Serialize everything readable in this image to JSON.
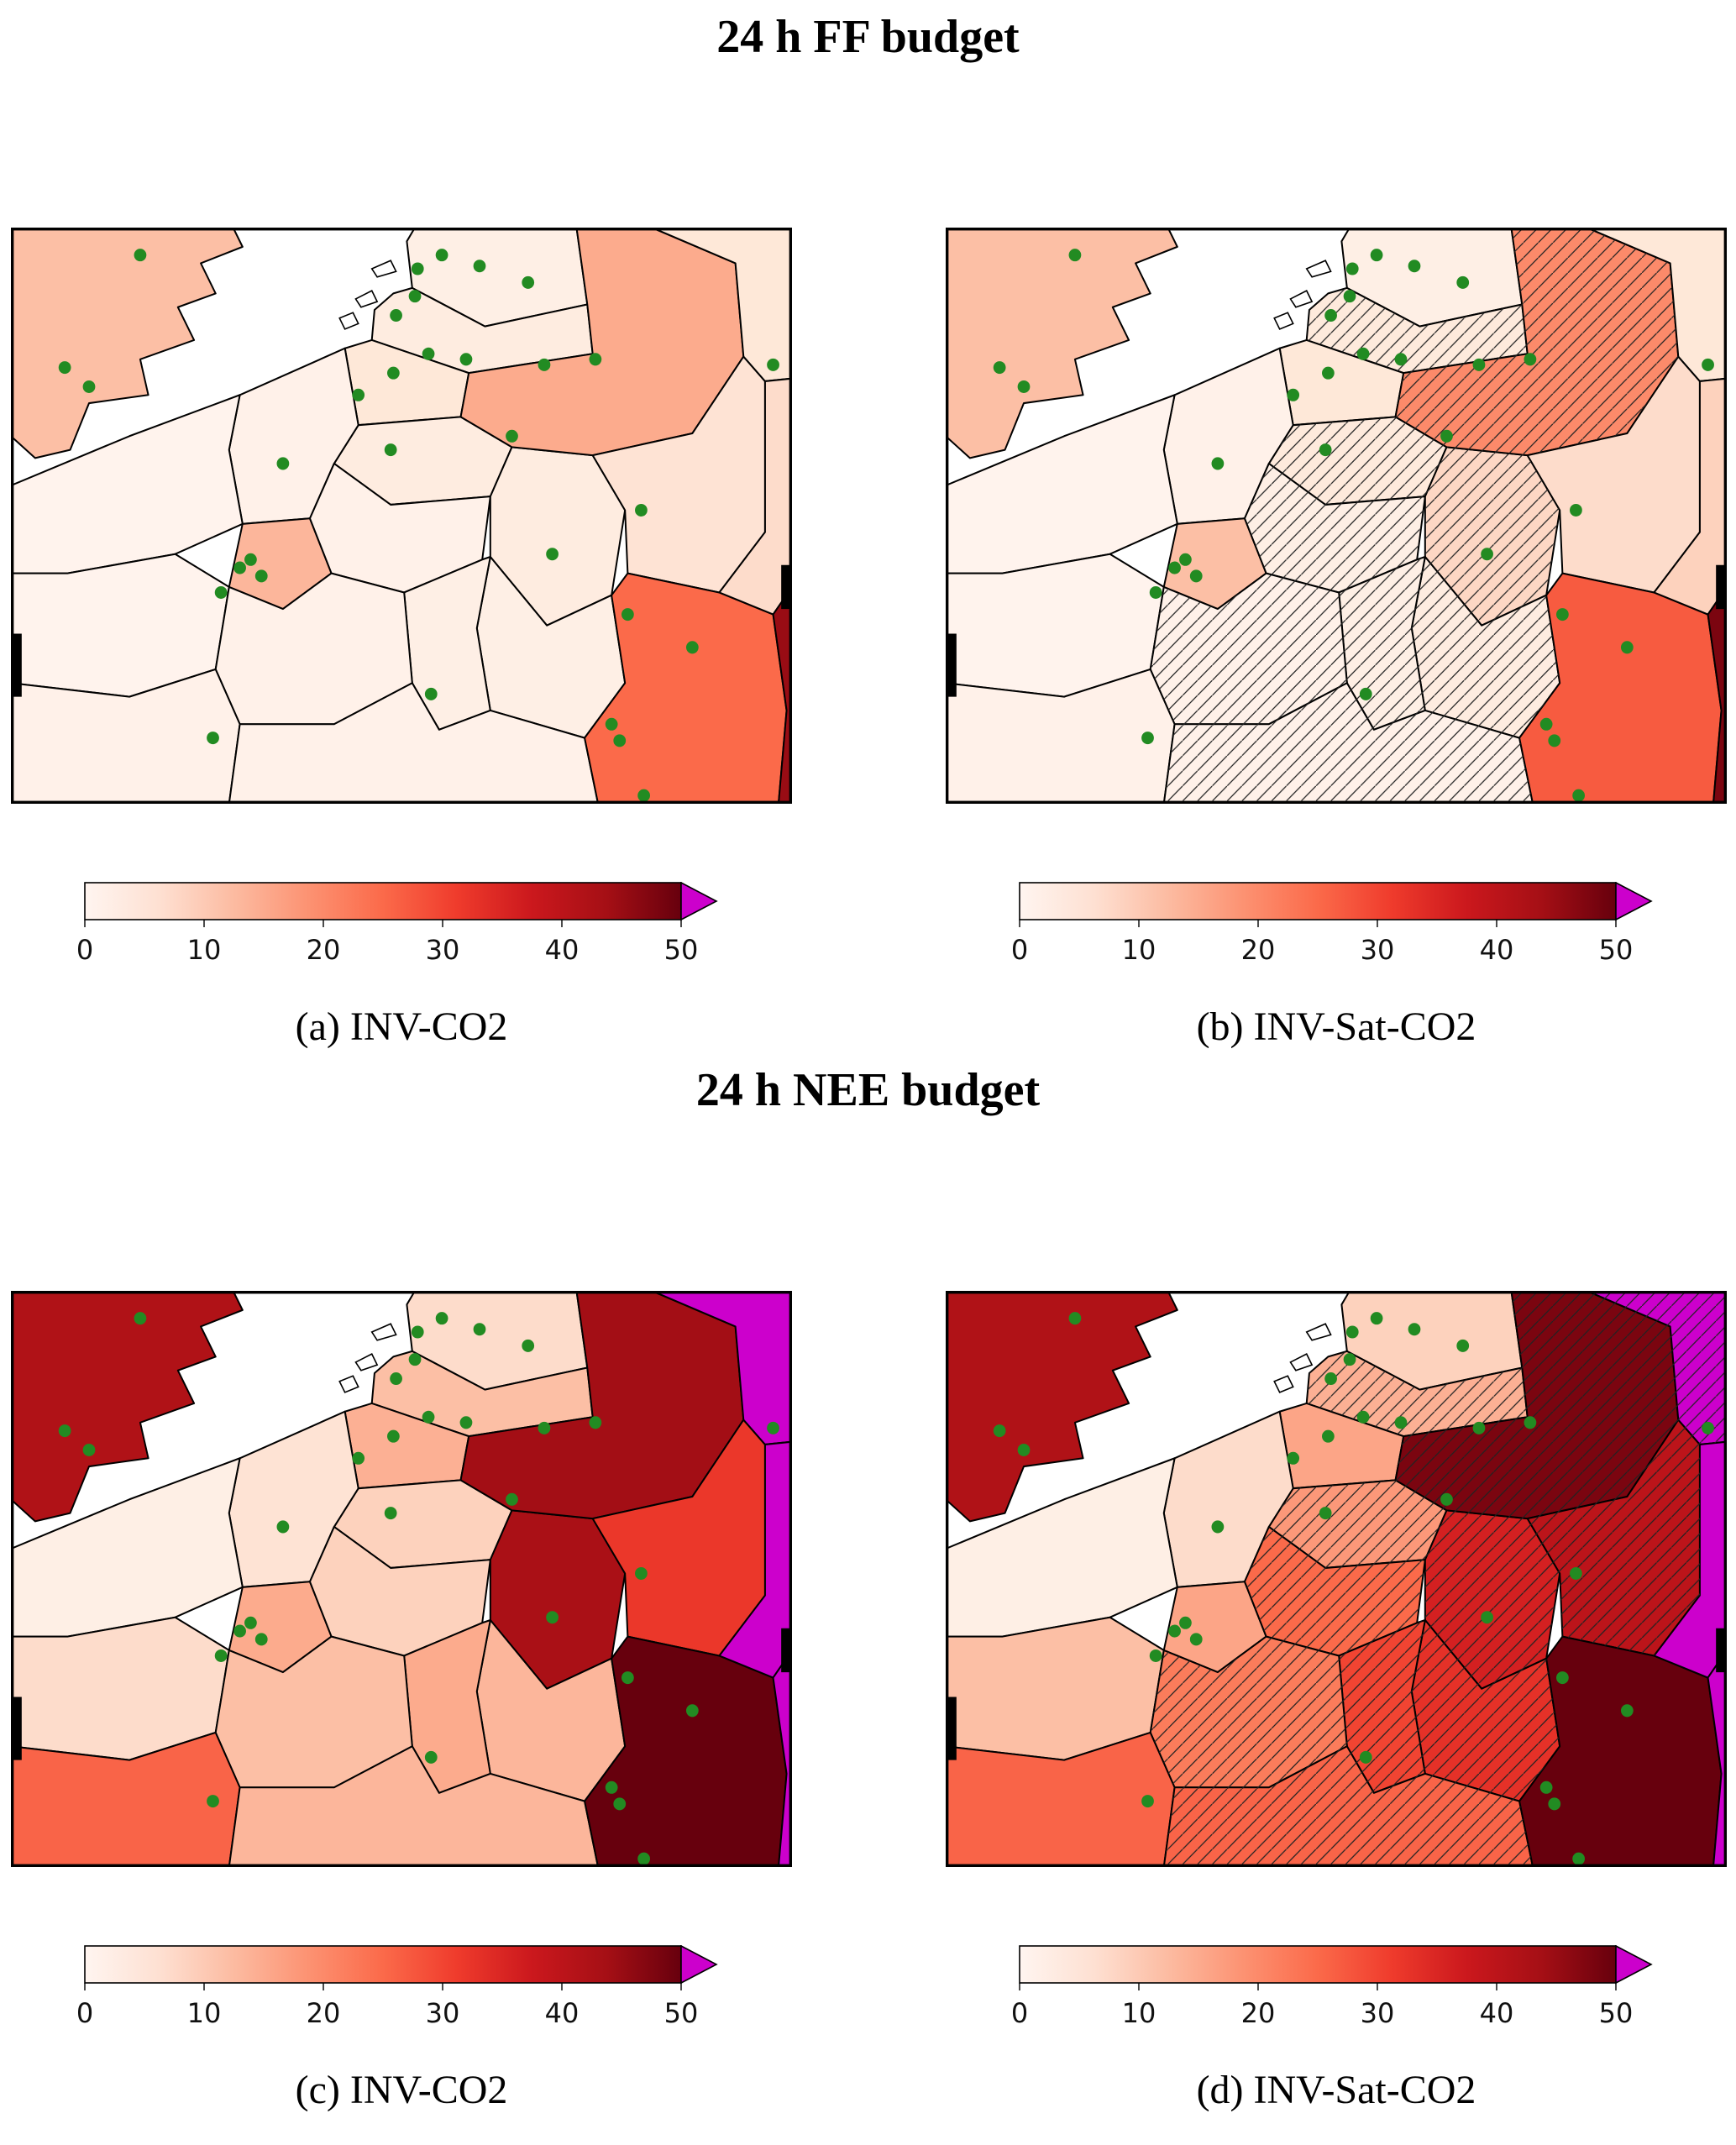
{
  "figure": {
    "ff_title": "24 h FF budget",
    "nee_title": "24 h NEE budget"
  },
  "colorbar": {
    "ticks": [
      "0",
      "10",
      "20",
      "30",
      "40",
      "50"
    ],
    "colormap": "Reds",
    "over_color": "#cc00cc",
    "gradient_stops": [
      "#fff5f0",
      "#fee0d2",
      "#fcbba1",
      "#fc9272",
      "#fb6a4a",
      "#ef3b2c",
      "#cb181d",
      "#a50f15",
      "#67000d"
    ]
  },
  "map": {
    "station_dot_color": "#228B22",
    "station_dots": [
      [
        96,
        20
      ],
      [
        40,
        102
      ],
      [
        58,
        116
      ],
      [
        302,
        30
      ],
      [
        300,
        50
      ],
      [
        286,
        64
      ],
      [
        320,
        20
      ],
      [
        348,
        28
      ],
      [
        384,
        40
      ],
      [
        310,
        92
      ],
      [
        338,
        96
      ],
      [
        284,
        106
      ],
      [
        258,
        122
      ],
      [
        202,
        172
      ],
      [
        282,
        162
      ],
      [
        396,
        100
      ],
      [
        434,
        96
      ],
      [
        372,
        152
      ],
      [
        566,
        100
      ],
      [
        468,
        206
      ],
      [
        402,
        238
      ],
      [
        170,
        248
      ],
      [
        178,
        242
      ],
      [
        186,
        254
      ],
      [
        156,
        266
      ],
      [
        150,
        372
      ],
      [
        312,
        340
      ],
      [
        458,
        282
      ],
      [
        506,
        306
      ],
      [
        446,
        362
      ],
      [
        452,
        374
      ],
      [
        470,
        414
      ]
    ]
  },
  "panels": [
    {
      "id": "a",
      "caption": "(a) INV-CO2",
      "hatched_regions": [],
      "region_colors": {
        "uk": "#fcbfa5",
        "nl_north": "#feefe5",
        "nl_south": "#feece0",
        "belgium_fl": "#fee8d8",
        "belgium_wa": "#feece0",
        "hdf": "#fff1e9",
        "normandy": "#fff3ed",
        "idf": "#fcb69b",
        "champagne": "#fff1e9",
        "rlp": "#feece0",
        "grand_est_e": "#feefe5",
        "franche": "#feefe5",
        "centre_fr": "#fff3ed",
        "burgundy": "#fff1e9",
        "sw_france": "#fff1e9",
        "bottom_mid": "#fff1e9",
        "nrw": "#fcab8d",
        "hesse": "#fee3d4",
        "bw": "#fb6a4a",
        "top_right": "#fee8d8",
        "right_strip": "#fddccb",
        "bavaria_sliver": "#990c14"
      }
    },
    {
      "id": "b",
      "caption": "(b) INV-Sat-CO2",
      "hatched_regions": [
        "nl_south",
        "belgium_wa",
        "champagne",
        "rlp",
        "grand_est_e",
        "franche",
        "burgundy",
        "bottom_mid",
        "nrw"
      ],
      "region_colors": {
        "uk": "#fcbfa5",
        "nl_north": "#feefe5",
        "nl_south": "#feeadc",
        "belgium_fl": "#fee8d8",
        "belgium_wa": "#feeadc",
        "hdf": "#fff1e9",
        "normandy": "#fff3ed",
        "idf": "#fcbfa5",
        "champagne": "#feefe5",
        "rlp": "#fdd7c4",
        "grand_est_e": "#feece0",
        "franche": "#feefe5",
        "centre_fr": "#fff3ed",
        "burgundy": "#fff1e9",
        "sw_france": "#fff1e9",
        "bottom_mid": "#fff1e9",
        "nrw": "#fc8a6a",
        "hesse": "#fddccb",
        "bw": "#f75b40",
        "top_right": "#fee8d8",
        "right_strip": "#fdd2bd",
        "bavaria_sliver": "#7b0510"
      }
    },
    {
      "id": "c",
      "caption": "(c) INV-CO2",
      "hatched_regions": [],
      "region_colors": {
        "uk": "#b01217",
        "nl_north": "#fddccb",
        "nl_south": "#fcbfa5",
        "belgium_fl": "#fcb094",
        "belgium_wa": "#fdd2bd",
        "hdf": "#fee3d4",
        "normandy": "#feefe5",
        "idf": "#fcab8d",
        "champagne": "#fdd2bd",
        "rlp": "#aa1016",
        "grand_est_e": "#fcb69b",
        "franche": "#fcab8d",
        "centre_fr": "#fddccb",
        "burgundy": "#fcbfa5",
        "sw_france": "#f96448",
        "bottom_mid": "#fcb69b",
        "nrw": "#a30e15",
        "hesse": "#eb372a",
        "bw": "#67000d",
        "top_right": "#cc00cc",
        "right_strip": "#cc00cc",
        "bavaria_sliver": "#cc00cc"
      }
    },
    {
      "id": "d",
      "caption": "(d) INV-Sat-CO2",
      "hatched_regions": [
        "nl_south",
        "belgium_wa",
        "champagne",
        "rlp",
        "grand_est_e",
        "franche",
        "burgundy",
        "bottom_mid",
        "nrw",
        "hesse",
        "top_right"
      ],
      "region_colors": {
        "uk": "#b01217",
        "nl_north": "#fdd2bd",
        "nl_south": "#fcb094",
        "belgium_fl": "#fca587",
        "belgium_wa": "#fc9879",
        "hdf": "#fddccb",
        "normandy": "#feefe5",
        "idf": "#fca587",
        "champagne": "#fb6a4a",
        "rlp": "#d42021",
        "grand_est_e": "#e53128",
        "franche": "#f14432",
        "centre_fr": "#fcbfa5",
        "burgundy": "#fb7c5b",
        "sw_france": "#f96448",
        "bottom_mid": "#f96448",
        "nrw": "#7b0510",
        "hesse": "#bc141a",
        "bw": "#67000d",
        "top_right": "#cc00cc",
        "right_strip": "#cc00cc",
        "bavaria_sliver": "#cc00cc"
      }
    }
  ],
  "chart_data": [
    {
      "type": "heatmap",
      "subtype": "choropleth-map",
      "title": "24 h FF budget",
      "colorbar": {
        "range": [
          0,
          50
        ],
        "ticks": [
          0,
          10,
          20,
          30,
          40,
          50
        ],
        "colormap": "Reds",
        "over_color_meaning": "> 50",
        "units_labeled": false
      },
      "panels": [
        {
          "label": "(a) INV-CO2",
          "region_values": {
            "uk": 12,
            "nl_north": 3,
            "nl_south": 4,
            "belgium_fl": 6,
            "belgium_wa": 4,
            "hdf": 2,
            "normandy": 1,
            "idf": 13,
            "champagne": 2,
            "rlp": 4,
            "grand_est_e": 3,
            "franche": 3,
            "centre_fr": 1,
            "burgundy": 2,
            "sw_france": 2,
            "bottom_mid": 2,
            "nrw": 15,
            "hesse": 7,
            "bw": 25,
            "top_right": 6,
            "right_strip": 8,
            "bavaria_sliver": 45
          }
        },
        {
          "label": "(b) INV-Sat-CO2",
          "hatched_regions": [
            "nl_south",
            "belgium_wa",
            "champagne",
            "rlp",
            "grand_est_e",
            "franche",
            "burgundy",
            "bottom_mid",
            "nrw"
          ],
          "region_values": {
            "uk": 12,
            "nl_north": 3,
            "nl_south": 5,
            "belgium_fl": 6,
            "belgium_wa": 5,
            "hdf": 2,
            "normandy": 1,
            "idf": 12,
            "champagne": 3,
            "rlp": 9,
            "grand_est_e": 4,
            "franche": 3,
            "centre_fr": 1,
            "burgundy": 2,
            "sw_france": 2,
            "bottom_mid": 2,
            "nrw": 20,
            "hesse": 8,
            "bw": 27,
            "top_right": 6,
            "right_strip": 10,
            "bavaria_sliver": 48
          }
        }
      ]
    },
    {
      "type": "heatmap",
      "subtype": "choropleth-map",
      "title": "24 h NEE budget",
      "colorbar": {
        "range": [
          0,
          50
        ],
        "ticks": [
          0,
          10,
          20,
          30,
          40,
          50
        ],
        "colormap": "Reds",
        "over_color_meaning": "> 50",
        "units_labeled": false
      },
      "panels": [
        {
          "label": "(c) INV-CO2",
          "region_values": {
            "uk": 42,
            "nl_north": 8,
            "nl_south": 12,
            "belgium_fl": 14,
            "belgium_wa": 10,
            "hdf": 7,
            "normandy": 3,
            "idf": 15,
            "champagne": 10,
            "rlp": 43,
            "grand_est_e": 13,
            "franche": 15,
            "centre_fr": 8,
            "burgundy": 12,
            "sw_france": 26,
            "bottom_mid": 13,
            "nrw": 44,
            "hesse": 32,
            "bw": 50,
            "top_right": ">50",
            "right_strip": ">50",
            "bavaria_sliver": ">50"
          }
        },
        {
          "label": "(d) INV-Sat-CO2",
          "hatched_regions": [
            "nl_south",
            "belgium_wa",
            "champagne",
            "rlp",
            "grand_est_e",
            "franche",
            "burgundy",
            "bottom_mid",
            "nrw",
            "hesse",
            "top_right"
          ],
          "region_values": {
            "uk": 42,
            "nl_north": 10,
            "nl_south": 14,
            "belgium_fl": 16,
            "belgium_wa": 18,
            "hdf": 8,
            "normandy": 3,
            "idf": 16,
            "champagne": 25,
            "rlp": 36,
            "grand_est_e": 33,
            "franche": 30,
            "centre_fr": 12,
            "burgundy": 22,
            "sw_france": 26,
            "bottom_mid": 26,
            "nrw": 48,
            "hesse": 40,
            "bw": 50,
            "top_right": ">50",
            "right_strip": ">50",
            "bavaria_sliver": ">50"
          }
        }
      ]
    }
  ]
}
